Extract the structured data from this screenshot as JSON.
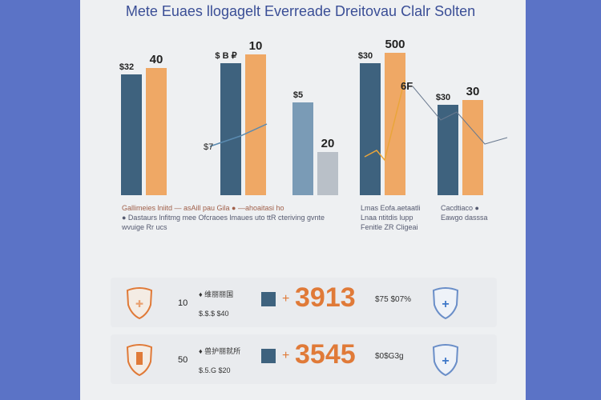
{
  "title": "Mete Euaes llogagelt Everreade Dreitovau Clalr Solten",
  "colors": {
    "background": "#5b73c6",
    "card": "#eef0f2",
    "dark_bar": "#3e627e",
    "orange_bar": "#efa865",
    "light_bar": "#7a9bb6",
    "gray_bar": "#b9c0c8",
    "accent": "#e07a38",
    "shield_blue": "#5a80c0"
  },
  "chart_data": {
    "type": "bar",
    "ylim": [
      0,
      200
    ],
    "grid": false,
    "groups": [
      {
        "labels": [
          "$32",
          "40"
        ],
        "values": [
          151,
          159
        ],
        "colors": [
          "#3e627e",
          "#efa865"
        ]
      },
      {
        "labels": [
          "$ B ₽",
          "10"
        ],
        "values": [
          165,
          176
        ],
        "colors": [
          "#3e627e",
          "#efa865"
        ]
      },
      {
        "labels": [
          "$5",
          "20"
        ],
        "values": [
          116,
          54
        ],
        "colors": [
          "#7a9bb6",
          "#b9c0c8"
        ]
      },
      {
        "labels": [
          "$30",
          "500"
        ],
        "values": [
          165,
          178
        ],
        "colors": [
          "#3e627e",
          "#efa865"
        ]
      },
      {
        "labels": [
          "$30",
          "30"
        ],
        "values": [
          113,
          119
        ],
        "colors": [
          "#3e627e",
          "#efa865"
        ]
      }
    ],
    "annotations": [
      "$7",
      "6F"
    ],
    "footnotes": [
      {
        "lines": [
          "Gallimeies lniitd — asAill pau Gila ●  —ahoaitasi ho",
          "● Dastaurs lnfitmg mee  Ofcraoes lmaues uto ttR cteriving gvnte",
          "wvuige Rr ucs"
        ]
      },
      {
        "lines": [
          "Lmas Eofa.aetaatli",
          "Lnaa ntitdis lupp",
          "Fenitle ZR Cligeai"
        ]
      },
      {
        "lines": [
          "Cacdtiaco ●",
          "Eawgo dasssa"
        ]
      }
    ]
  },
  "rows": [
    {
      "small_num": "10",
      "small_title": "♦ 维丽丽国",
      "small_sub": "$.$.$ $40",
      "value": "3913",
      "side": "$75 $07%",
      "left_icon": "shield-icon",
      "right_icon": "shield-plus-icon"
    },
    {
      "small_num": "50",
      "small_title": "♦ 兽护丽就所",
      "small_sub": "$.5.G $20",
      "value": "3545",
      "side": "$0$G3g",
      "left_icon": "shield-i-icon",
      "right_icon": "shield-plus-icon"
    }
  ]
}
